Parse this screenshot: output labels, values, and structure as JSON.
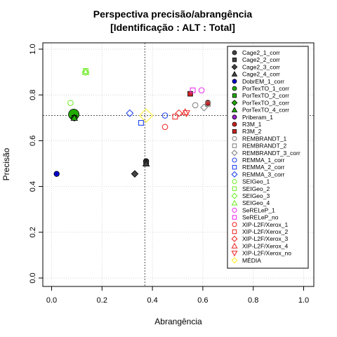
{
  "chart_data": {
    "type": "scatter",
    "title": "Perspectiva precisão/abrangência",
    "subtitle": "[Identificação : ALT : Total]",
    "xlabel": "Abrangência",
    "ylabel": "Precisão",
    "xlim": [
      0,
      1
    ],
    "ylim": [
      0,
      1
    ],
    "xticks": [
      "0.0",
      "0.2",
      "0.4",
      "0.6",
      "0.8",
      "1.0"
    ],
    "yticks": [
      "0.0",
      "0.2",
      "0.4",
      "0.6",
      "0.8",
      "1.0"
    ],
    "grid": true,
    "reference_lines": {
      "x": 0.37,
      "y": 0.71
    },
    "legend_position": "right",
    "series": [
      {
        "name": "Cage2_1_corr",
        "shape": "circle",
        "color": "#444444",
        "filled": true,
        "x": 0.375,
        "y": 0.51,
        "size": 1
      },
      {
        "name": "Cage2_2_corr",
        "shape": "square",
        "color": "#444444",
        "filled": true,
        "x": 0.375,
        "y": 0.505,
        "size": 1
      },
      {
        "name": "Cage2_3_corr",
        "shape": "diamond",
        "color": "#444444",
        "filled": true,
        "x": 0.33,
        "y": 0.455,
        "size": 1
      },
      {
        "name": "Cage2_4_corr",
        "shape": "triangle",
        "color": "#444444",
        "filled": true,
        "x": 0.375,
        "y": 0.5,
        "size": 1
      },
      {
        "name": "DobrEM_1_corr",
        "shape": "circle",
        "color": "#0000cc",
        "filled": true,
        "x": 0.02,
        "y": 0.455,
        "size": 1
      },
      {
        "name": "PorTexTO_1_corr",
        "shape": "circle",
        "color": "#22aa00",
        "filled": true,
        "x": 0.088,
        "y": 0.715,
        "size": 2
      },
      {
        "name": "PorTexTO_2_corr",
        "shape": "square",
        "color": "#22aa00",
        "filled": true,
        "x": 0.09,
        "y": 0.7,
        "size": 1
      },
      {
        "name": "PorTexTO_3_corr",
        "shape": "diamond",
        "color": "#22aa00",
        "filled": true,
        "x": 0.09,
        "y": 0.7,
        "size": 1
      },
      {
        "name": "PorTexTO_4_corr",
        "shape": "triangle",
        "color": "#22aa00",
        "filled": true,
        "x": 0.09,
        "y": 0.7,
        "size": 1
      },
      {
        "name": "Priberam_1",
        "shape": "circle",
        "color": "#9922cc",
        "filled": true,
        "x": null,
        "y": null,
        "size": 1
      },
      {
        "name": "R3M_1",
        "shape": "circle",
        "color": "#cc2222",
        "filled": true,
        "x": 0.62,
        "y": 0.765,
        "size": 1
      },
      {
        "name": "R3M_2",
        "shape": "square",
        "color": "#cc2222",
        "filled": true,
        "x": 0.55,
        "y": 0.805,
        "size": 1
      },
      {
        "name": "REMBRANDT_1",
        "shape": "circle",
        "color": "#888888",
        "filled": false,
        "x": 0.57,
        "y": 0.755,
        "size": 1
      },
      {
        "name": "REMBRANDT_2",
        "shape": "square",
        "color": "#888888",
        "filled": false,
        "x": 0.62,
        "y": 0.76,
        "size": 1
      },
      {
        "name": "REMBRANDT_3_corr",
        "shape": "diamond",
        "color": "#888888",
        "filled": false,
        "x": 0.605,
        "y": 0.745,
        "size": 1
      },
      {
        "name": "REMMA_1_corr",
        "shape": "circle",
        "color": "#2244ee",
        "filled": false,
        "x": 0.45,
        "y": 0.71,
        "size": 1
      },
      {
        "name": "REMMA_2_corr",
        "shape": "square",
        "color": "#2244ee",
        "filled": false,
        "x": 0.355,
        "y": 0.678,
        "size": 1
      },
      {
        "name": "REMMA_3_corr",
        "shape": "diamond",
        "color": "#2244ee",
        "filled": false,
        "x": 0.31,
        "y": 0.72,
        "size": 1
      },
      {
        "name": "SEIGeo_1",
        "shape": "circle",
        "color": "#77ee33",
        "filled": false,
        "x": 0.075,
        "y": 0.765,
        "size": 1
      },
      {
        "name": "SEIGeo_2",
        "shape": "square",
        "color": "#77ee33",
        "filled": false,
        "x": 0.135,
        "y": 0.905,
        "size": 1
      },
      {
        "name": "SEIGeo_3",
        "shape": "diamond",
        "color": "#77ee33",
        "filled": false,
        "x": 0.135,
        "y": 0.9,
        "size": 1
      },
      {
        "name": "SEIGeo_4",
        "shape": "triangle",
        "color": "#77ee33",
        "filled": false,
        "x": 0.135,
        "y": 0.9,
        "size": 1
      },
      {
        "name": "SeRELeP_1",
        "shape": "circle",
        "color": "#ee33ee",
        "filled": false,
        "x": 0.595,
        "y": 0.82,
        "size": 1
      },
      {
        "name": "SeRELeP_no",
        "shape": "square",
        "color": "#ee33ee",
        "filled": false,
        "x": 0.56,
        "y": 0.82,
        "size": 1
      },
      {
        "name": "XIP-L2F/Xerox_1",
        "shape": "circle",
        "color": "#ee3333",
        "filled": false,
        "x": 0.45,
        "y": 0.66,
        "size": 1
      },
      {
        "name": "XIP-L2F/Xerox_2",
        "shape": "square",
        "color": "#ee3333",
        "filled": false,
        "x": 0.49,
        "y": 0.705,
        "size": 1
      },
      {
        "name": "XIP-L2F/Xerox_3",
        "shape": "diamond",
        "color": "#ee3333",
        "filled": false,
        "x": 0.505,
        "y": 0.72,
        "size": 1
      },
      {
        "name": "XIP-L2F/Xerox_4",
        "shape": "triangle",
        "color": "#ee3333",
        "filled": false,
        "x": 0.53,
        "y": 0.725,
        "size": 1
      },
      {
        "name": "XIP-L2F/Xerox_no",
        "shape": "triangle-down",
        "color": "#ee3333",
        "filled": false,
        "x": 0.535,
        "y": 0.72,
        "size": 1
      },
      {
        "name": "MÉDIA",
        "shape": "diamond",
        "color": "#ffee33",
        "filled": false,
        "x": 0.375,
        "y": 0.71,
        "size": 2
      }
    ]
  }
}
